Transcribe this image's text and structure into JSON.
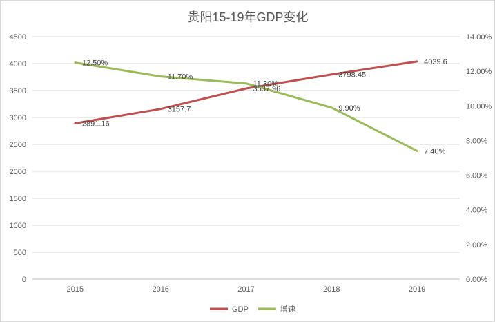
{
  "chart_data": {
    "type": "line",
    "title": "贵阳15-19年GDP变化",
    "categories": [
      "2015",
      "2016",
      "2017",
      "2018",
      "2019"
    ],
    "series": [
      {
        "name": "GDP",
        "axis": "left",
        "color": "#c0504d",
        "values": [
          2891.16,
          3157.7,
          3537.96,
          3798.45,
          4039.6
        ],
        "labels": [
          "2891.16",
          "3157.7",
          "3537.96",
          "3798.45",
          "4039.6"
        ]
      },
      {
        "name": "增速",
        "axis": "right",
        "color": "#9bbb59",
        "values": [
          12.5,
          11.7,
          11.3,
          9.9,
          7.4
        ],
        "labels": [
          "12.50%",
          "11.70%",
          "11.30%",
          "9.90%",
          "7.40%"
        ]
      }
    ],
    "y_left": {
      "min": 0,
      "max": 4500,
      "ticks": [
        "0",
        "500",
        "1000",
        "1500",
        "2000",
        "2500",
        "3000",
        "3500",
        "4000",
        "4500"
      ]
    },
    "y_right": {
      "min": 0,
      "max": 14,
      "ticks": [
        "0.00%",
        "2.00%",
        "4.00%",
        "6.00%",
        "8.00%",
        "10.00%",
        "12.00%",
        "14.00%"
      ]
    },
    "grid": true,
    "legend_position": "bottom"
  }
}
